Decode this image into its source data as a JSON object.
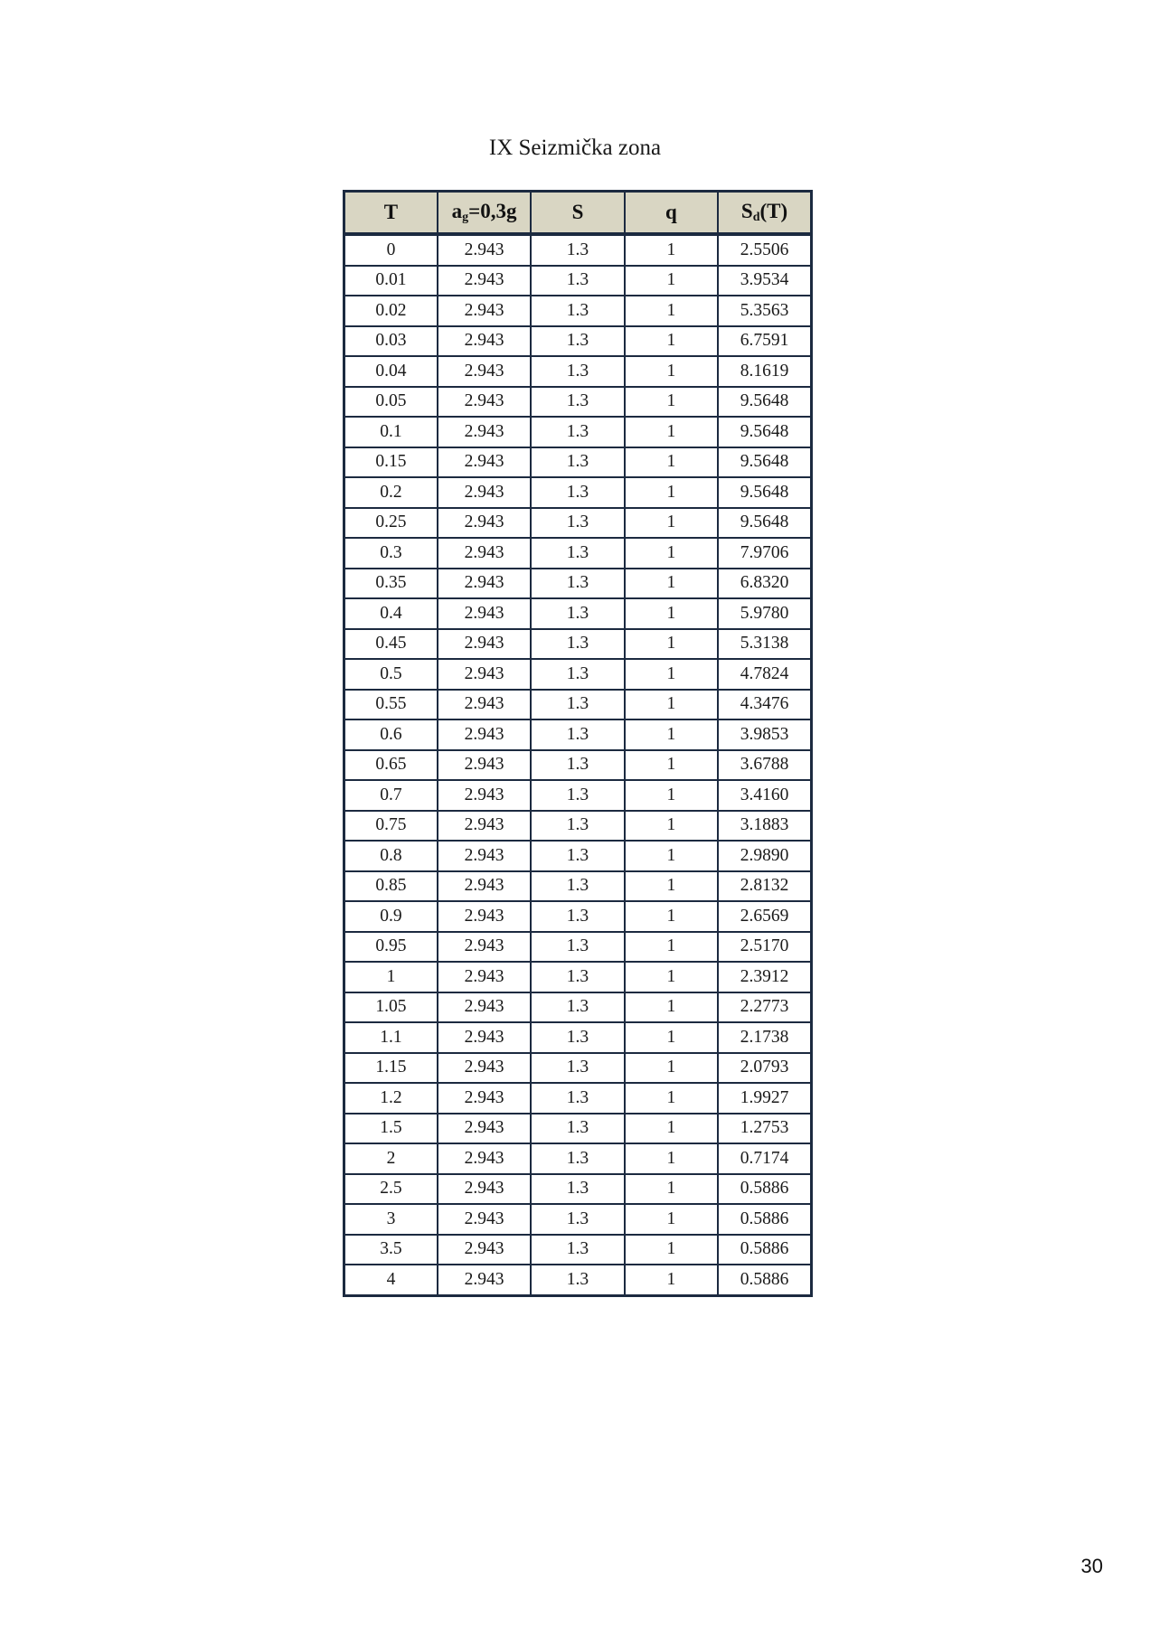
{
  "title": "IX Seizmička zona",
  "table": {
    "headers": {
      "t": "T",
      "ag_main": "a",
      "ag_sub": "g",
      "ag_tail": "=0,3g",
      "s": "S",
      "q": "q",
      "sd_main": "S",
      "sd_sub": "d",
      "sd_tail": "(T)"
    },
    "rows": [
      [
        "0",
        "2.943",
        "1.3",
        "1",
        "2.5506"
      ],
      [
        "0.01",
        "2.943",
        "1.3",
        "1",
        "3.9534"
      ],
      [
        "0.02",
        "2.943",
        "1.3",
        "1",
        "5.3563"
      ],
      [
        "0.03",
        "2.943",
        "1.3",
        "1",
        "6.7591"
      ],
      [
        "0.04",
        "2.943",
        "1.3",
        "1",
        "8.1619"
      ],
      [
        "0.05",
        "2.943",
        "1.3",
        "1",
        "9.5648"
      ],
      [
        "0.1",
        "2.943",
        "1.3",
        "1",
        "9.5648"
      ],
      [
        "0.15",
        "2.943",
        "1.3",
        "1",
        "9.5648"
      ],
      [
        "0.2",
        "2.943",
        "1.3",
        "1",
        "9.5648"
      ],
      [
        "0.25",
        "2.943",
        "1.3",
        "1",
        "9.5648"
      ],
      [
        "0.3",
        "2.943",
        "1.3",
        "1",
        "7.9706"
      ],
      [
        "0.35",
        "2.943",
        "1.3",
        "1",
        "6.8320"
      ],
      [
        "0.4",
        "2.943",
        "1.3",
        "1",
        "5.9780"
      ],
      [
        "0.45",
        "2.943",
        "1.3",
        "1",
        "5.3138"
      ],
      [
        "0.5",
        "2.943",
        "1.3",
        "1",
        "4.7824"
      ],
      [
        "0.55",
        "2.943",
        "1.3",
        "1",
        "4.3476"
      ],
      [
        "0.6",
        "2.943",
        "1.3",
        "1",
        "3.9853"
      ],
      [
        "0.65",
        "2.943",
        "1.3",
        "1",
        "3.6788"
      ],
      [
        "0.7",
        "2.943",
        "1.3",
        "1",
        "3.4160"
      ],
      [
        "0.75",
        "2.943",
        "1.3",
        "1",
        "3.1883"
      ],
      [
        "0.8",
        "2.943",
        "1.3",
        "1",
        "2.9890"
      ],
      [
        "0.85",
        "2.943",
        "1.3",
        "1",
        "2.8132"
      ],
      [
        "0.9",
        "2.943",
        "1.3",
        "1",
        "2.6569"
      ],
      [
        "0.95",
        "2.943",
        "1.3",
        "1",
        "2.5170"
      ],
      [
        "1",
        "2.943",
        "1.3",
        "1",
        "2.3912"
      ],
      [
        "1.05",
        "2.943",
        "1.3",
        "1",
        "2.2773"
      ],
      [
        "1.1",
        "2.943",
        "1.3",
        "1",
        "2.1738"
      ],
      [
        "1.15",
        "2.943",
        "1.3",
        "1",
        "2.0793"
      ],
      [
        "1.2",
        "2.943",
        "1.3",
        "1",
        "1.9927"
      ],
      [
        "1.5",
        "2.943",
        "1.3",
        "1",
        "1.2753"
      ],
      [
        "2",
        "2.943",
        "1.3",
        "1",
        "0.7174"
      ],
      [
        "2.5",
        "2.943",
        "1.3",
        "1",
        "0.5886"
      ],
      [
        "3",
        "2.943",
        "1.3",
        "1",
        "0.5886"
      ],
      [
        "3.5",
        "2.943",
        "1.3",
        "1",
        "0.5886"
      ],
      [
        "4",
        "2.943",
        "1.3",
        "1",
        "0.5886"
      ]
    ]
  },
  "page_number": "30"
}
